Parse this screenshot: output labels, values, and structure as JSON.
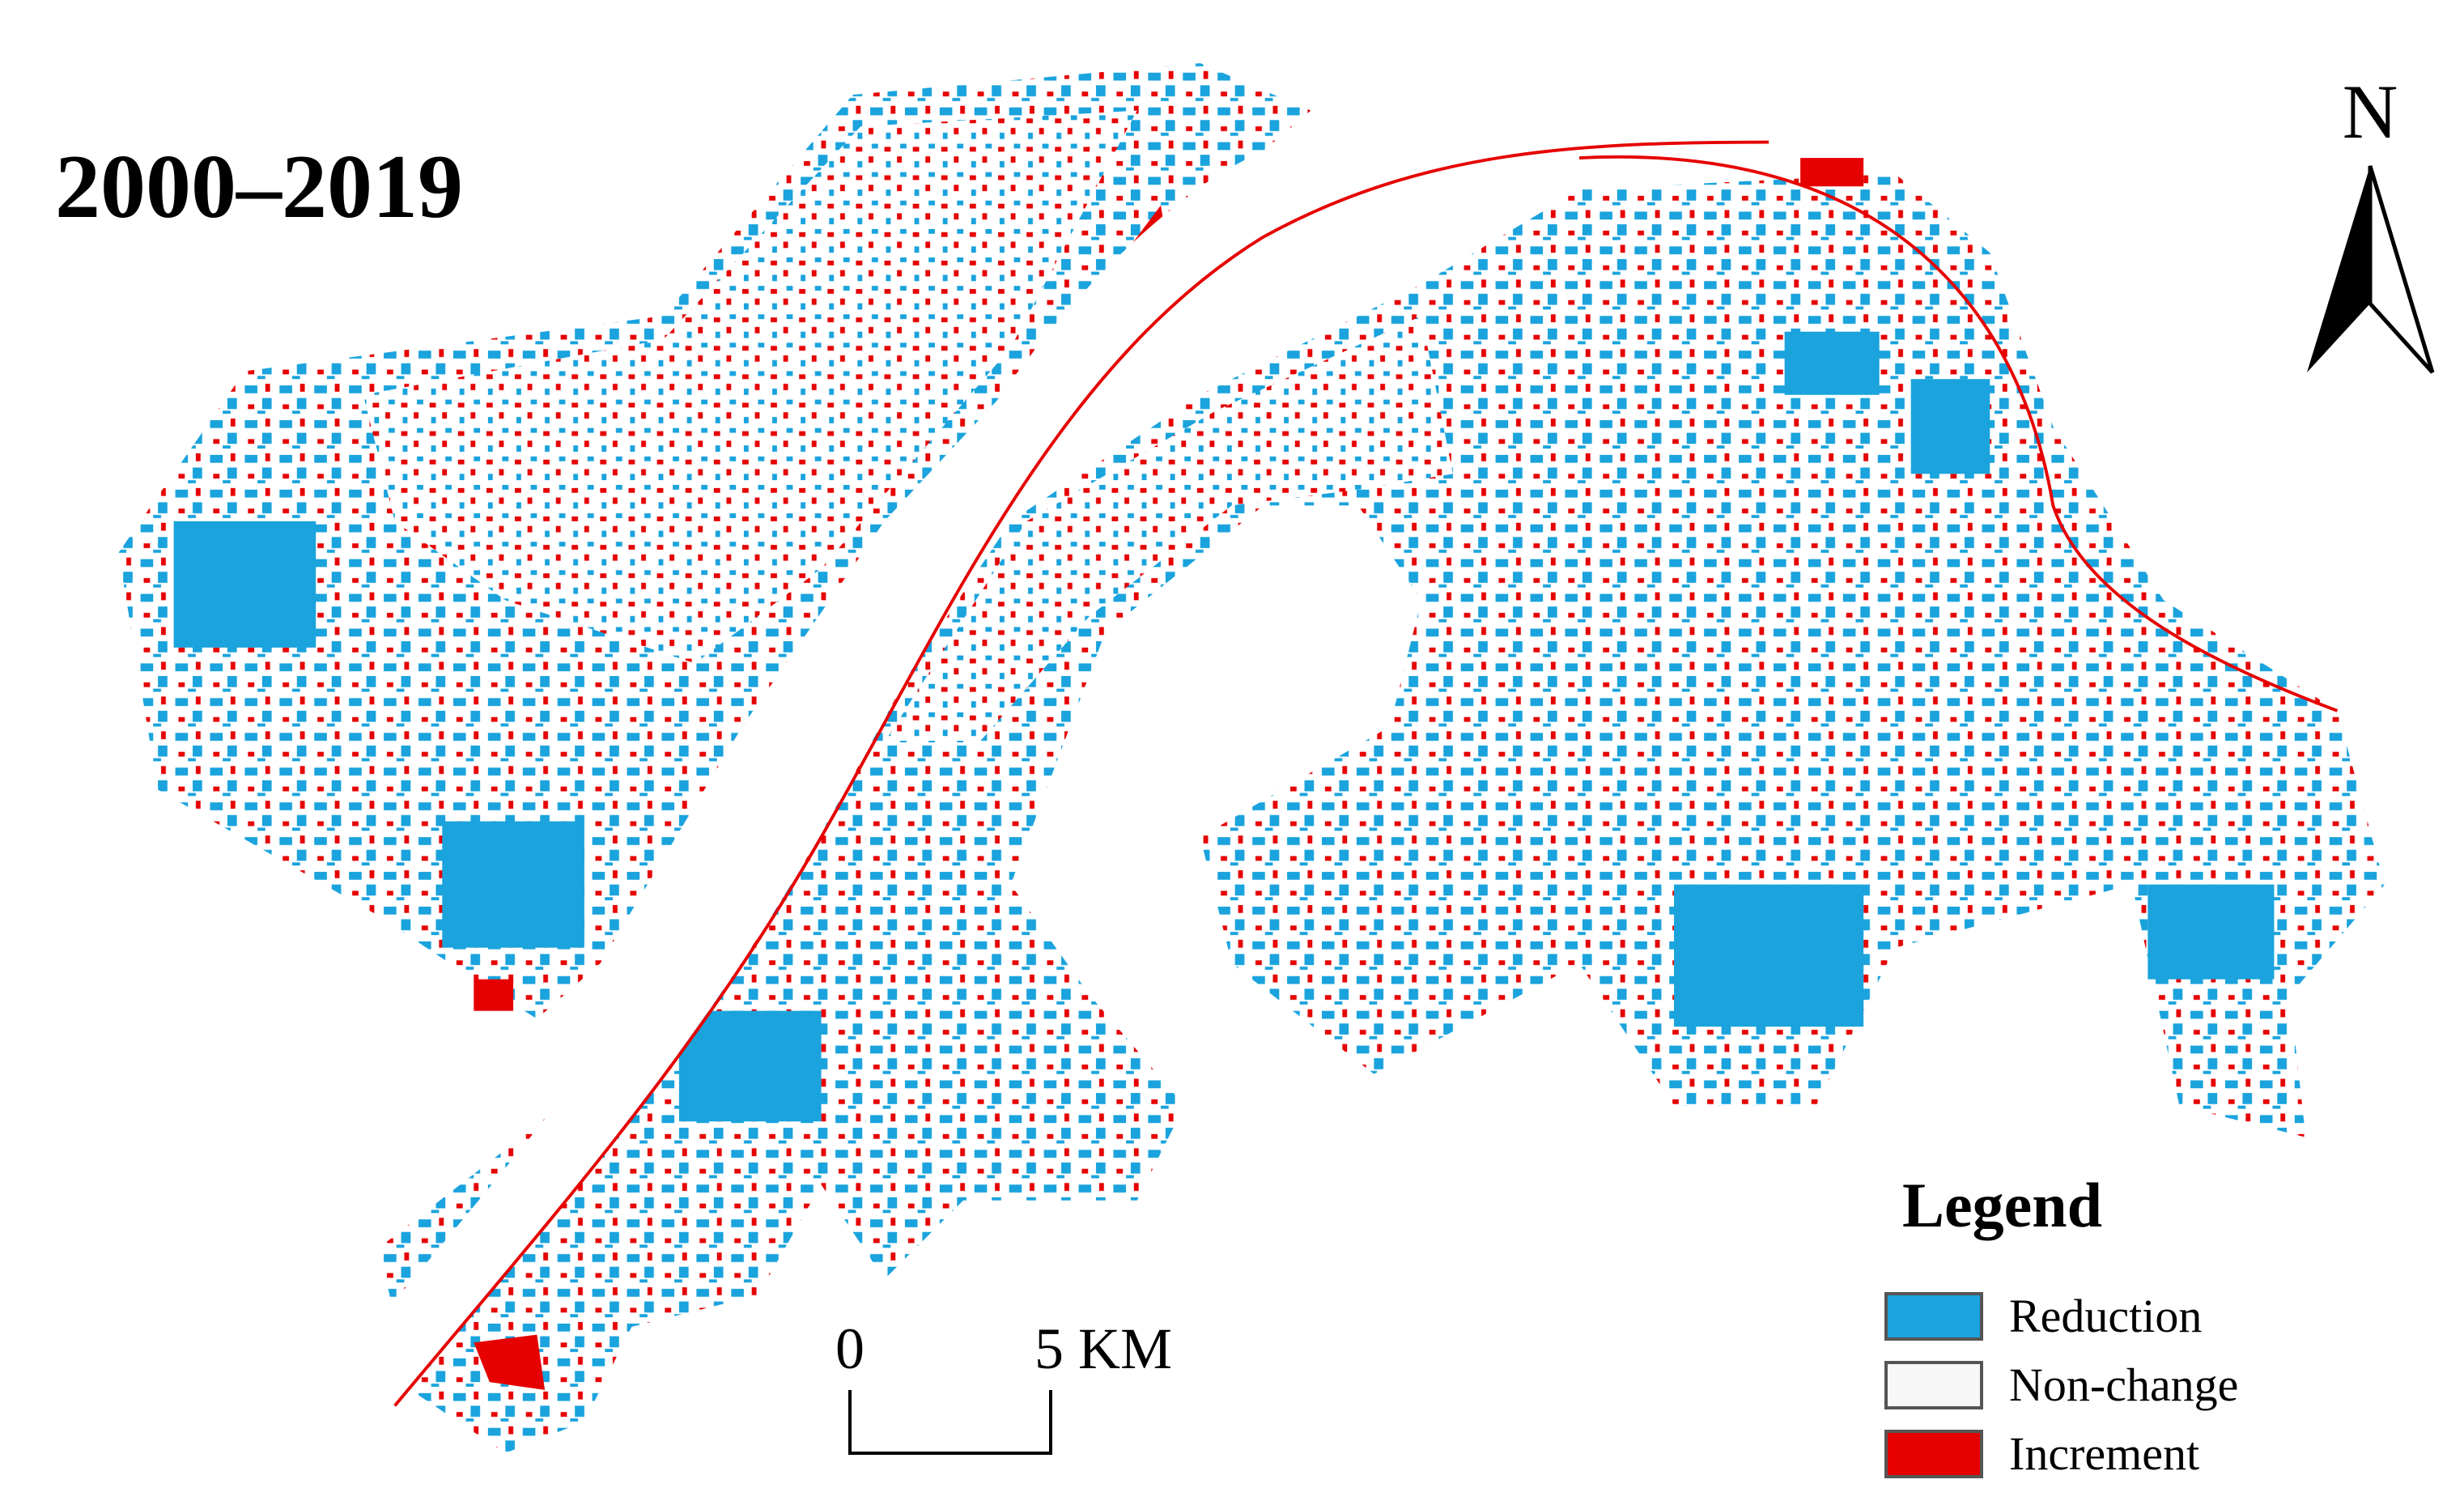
{
  "title": "2000–2019",
  "north": "N",
  "legend": {
    "title": "Legend",
    "items": [
      "Reduction",
      "Non-change",
      "Increment"
    ]
  },
  "scale_bar": {
    "start": "0",
    "end": "5 KM"
  }
}
